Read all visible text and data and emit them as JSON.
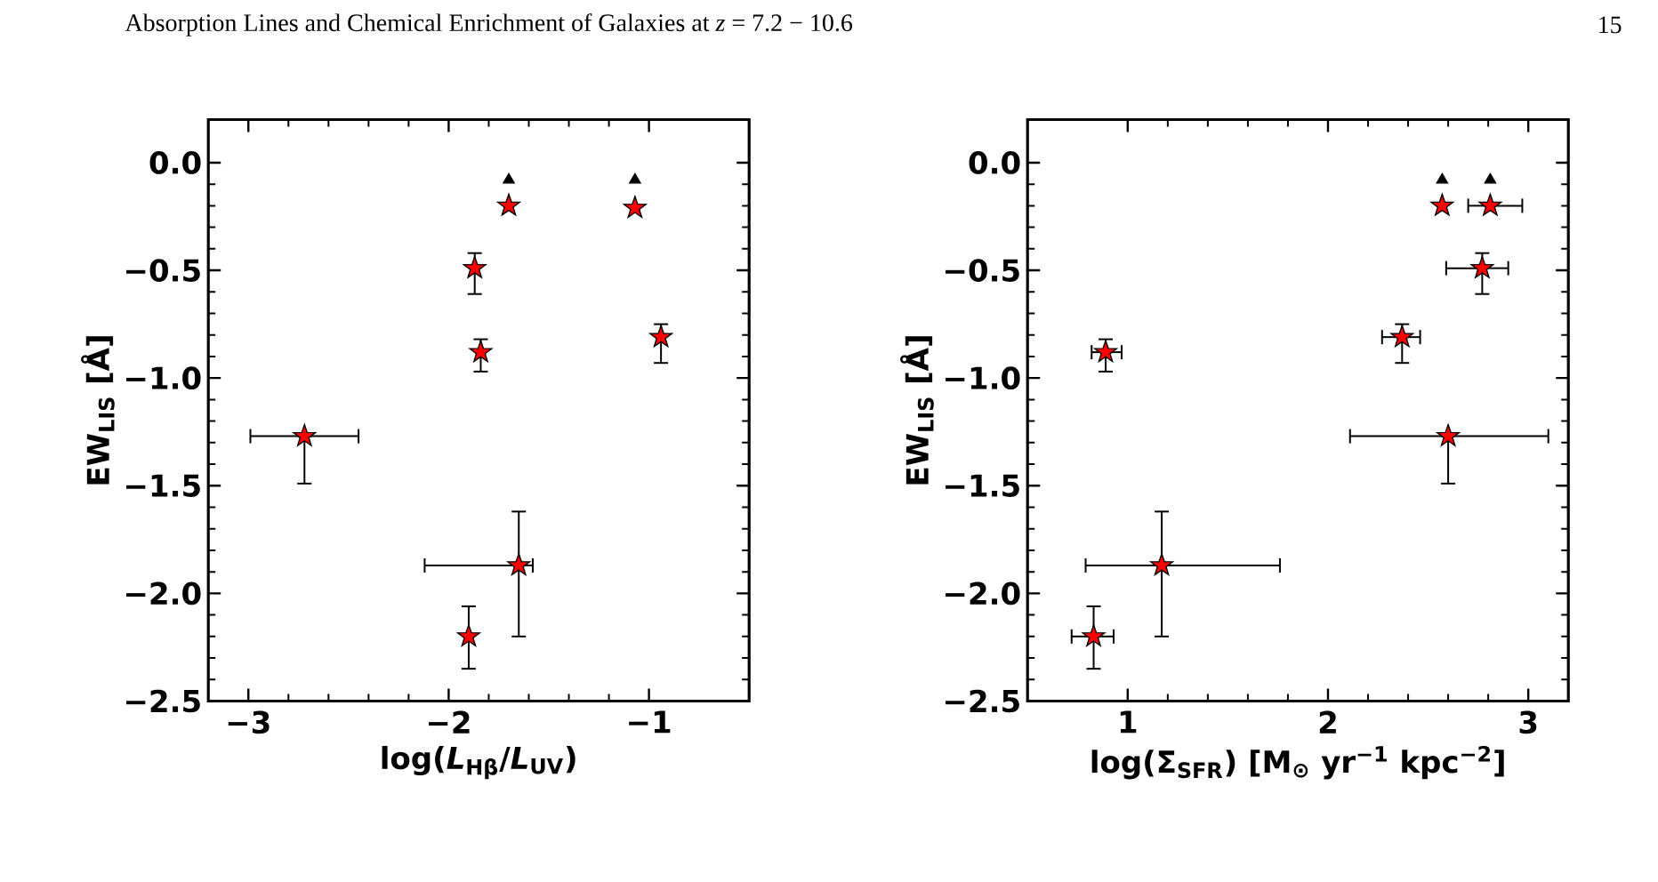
{
  "chart_data": [
    {
      "type": "scatter",
      "xlabel": "log(*L*$_{Hβ}$/*L*$_{UV}$)",
      "ylabel": "EW$_{LIS}$ [Å]",
      "annotations": [
        "Absorption Lines and Chemical Enrichment of Galaxies at *z* = 7.2 − 10.6",
        "15"
      ],
      "xlim": [
        -3.2,
        -0.5
      ],
      "xticks": [
        {
          "value": -3,
          "label": "−3"
        },
        {
          "value": -2,
          "label": "−2"
        },
        {
          "value": -1,
          "label": "−1"
        }
      ],
      "ylim": [
        -2.5,
        0.2
      ],
      "yticks": [
        {
          "value": 0,
          "label": "0.0"
        },
        {
          "value": -0.5,
          "label": "−0.5"
        },
        {
          "value": -1,
          "label": "−1.0"
        },
        {
          "value": -1.5,
          "label": "−1.5"
        },
        {
          "value": -2,
          "label": "−2.0"
        },
        {
          "value": -2.5,
          "label": "−2.5"
        }
      ],
      "series": [
        {
          "color": "#ff0000",
          "marker": "star",
          "x": [
            -1.87,
            -1.84,
            -0.94,
            -2.72,
            -1.65,
            -1.9
          ],
          "values": [
            -0.49,
            -0.88,
            -0.81,
            -1.27,
            -1.87,
            -2.2
          ],
          "errors": [
            [
              -0.61,
              -0.42
            ],
            [
              -0.97,
              -0.82
            ],
            [
              -0.93,
              -0.75
            ],
            [
              -1.49,
              -1.27
            ],
            [
              -2.2,
              -1.62
            ],
            [
              -2.35,
              -2.06
            ]
          ],
          "xerrors": [
            null,
            null,
            null,
            [
              -2.99,
              -2.45
            ],
            [
              -2.12,
              -1.58
            ],
            null
          ]
        },
        {
          "color": "#ff0000",
          "marker": "star",
          "x": [
            -1.7,
            -1.07
          ],
          "values": [
            -0.2,
            -0.21
          ]
        },
        {
          "color": "#000000",
          "marker": "triangle",
          "x": [
            -1.7,
            -1.07
          ],
          "values": [
            -0.08,
            -0.08
          ]
        }
      ]
    },
    {
      "type": "scatter",
      "xlabel": "log(Σ$_{SFR}$) [M$_{⊙}$ yr$^{−1}$ kpc$^{−2}$]",
      "ylabel": "EW$_{LIS}$ [Å]",
      "xlim": [
        0.5,
        3.2
      ],
      "xticks": [
        1,
        2,
        3
      ],
      "ylim": [
        -2.5,
        0.2
      ],
      "yticks": [
        {
          "value": 0,
          "label": "0.0"
        },
        {
          "value": -0.5,
          "label": "−0.5"
        },
        {
          "value": -1,
          "label": "−1.0"
        },
        {
          "value": -1.5,
          "label": "−1.5"
        },
        {
          "value": -2,
          "label": "−2.0"
        },
        {
          "value": -2.5,
          "label": "−2.5"
        }
      ],
      "series": [
        {
          "color": "#ff0000",
          "marker": "star",
          "x": [
            2.77,
            2.37,
            0.89,
            2.6,
            1.17,
            0.83
          ],
          "values": [
            -0.49,
            -0.81,
            -0.88,
            -1.27,
            -1.87,
            -2.2
          ],
          "errors": [
            [
              -0.61,
              -0.42
            ],
            [
              -0.93,
              -0.75
            ],
            [
              -0.97,
              -0.82
            ],
            [
              -1.49,
              -1.27
            ],
            [
              -2.2,
              -1.62
            ],
            [
              -2.35,
              -2.06
            ]
          ],
          "xerrors": [
            [
              2.59,
              2.9
            ],
            [
              2.27,
              2.46
            ],
            [
              0.82,
              0.97
            ],
            [
              2.11,
              3.1
            ],
            [
              0.79,
              1.76
            ],
            [
              0.72,
              0.93
            ]
          ]
        },
        {
          "color": "#ff0000",
          "marker": "star",
          "x": [
            2.57,
            2.81
          ],
          "values": [
            -0.2,
            -0.2
          ],
          "xerrors": [
            null,
            [
              2.7,
              2.97
            ]
          ]
        },
        {
          "color": "#000000",
          "marker": "triangle",
          "x": [
            2.57,
            2.81
          ],
          "values": [
            -0.08,
            -0.08
          ]
        }
      ]
    }
  ]
}
